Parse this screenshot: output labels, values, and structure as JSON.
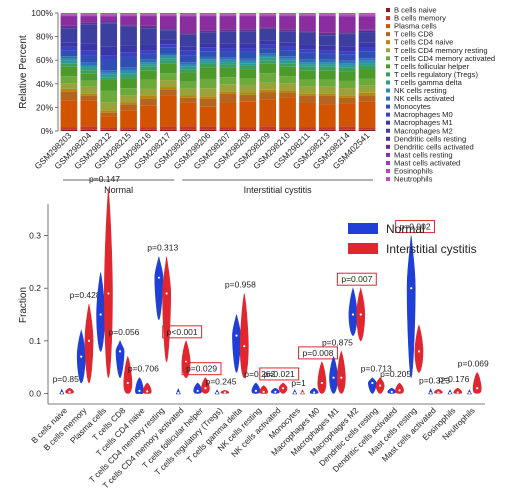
{
  "chart_data": [
    {
      "type": "bar",
      "stacked": true,
      "ylabel": "Relative Percent",
      "ylim": [
        0,
        100
      ],
      "yticks": [
        "0%",
        "20%",
        "40%",
        "60%",
        "80%",
        "100%"
      ],
      "samples": [
        "GSM298203",
        "GSM298204",
        "GSM298212",
        "GSM298215",
        "GSM298216",
        "GSM298217",
        "GSM298205",
        "GSM298206",
        "GSM298207",
        "GSM298208",
        "GSM298209",
        "GSM298210",
        "GSM298211",
        "GSM298213",
        "GSM298214",
        "GSM402541"
      ],
      "groups": [
        {
          "label": "Normal",
          "from": 0,
          "to": 5
        },
        {
          "label": "Interstitial cystitis",
          "from": 6,
          "to": 15
        }
      ],
      "series": [
        {
          "name": "B cells naive",
          "color": "#8b1a1a",
          "values": [
            1,
            1,
            1,
            1,
            1,
            1,
            1,
            1,
            1,
            1,
            1,
            1,
            1,
            1,
            1,
            1
          ]
        },
        {
          "name": "B cells memory",
          "color": "#c0392b",
          "values": [
            2,
            3,
            2,
            2,
            2,
            3,
            3,
            3,
            2,
            2,
            3,
            2,
            2,
            2,
            3,
            2
          ]
        },
        {
          "name": "Plasma cells",
          "color": "#d35400",
          "values": [
            23,
            22,
            10,
            15,
            19,
            27,
            21,
            17,
            21,
            22,
            23,
            26,
            21,
            20,
            19,
            22
          ]
        },
        {
          "name": "T cells CD8",
          "color": "#b5651d",
          "values": [
            8,
            4,
            3,
            5,
            6,
            5,
            4,
            7,
            8,
            6,
            6,
            4,
            6,
            7,
            5,
            5
          ]
        },
        {
          "name": "T cells CD4 naive",
          "color": "#b8860b",
          "values": [
            2,
            2,
            2,
            2,
            2,
            2,
            2,
            2,
            2,
            2,
            2,
            2,
            2,
            2,
            2,
            2
          ]
        },
        {
          "name": "T cells CD4 memory resting",
          "color": "#9aa33a",
          "values": [
            5,
            6,
            7,
            6,
            6,
            6,
            6,
            7,
            6,
            6,
            6,
            6,
            6,
            6,
            6,
            6
          ]
        },
        {
          "name": "T cells CD4 memory activated",
          "color": "#6aab3c",
          "values": [
            6,
            5,
            10,
            6,
            8,
            6,
            6,
            8,
            6,
            6,
            8,
            6,
            6,
            6,
            6,
            6
          ]
        },
        {
          "name": "T cells follicular helper",
          "color": "#4c9a2a",
          "values": [
            8,
            6,
            10,
            8,
            8,
            8,
            8,
            10,
            8,
            8,
            8,
            8,
            8,
            8,
            8,
            8
          ]
        },
        {
          "name": "T cells regulatory (Tregs)",
          "color": "#3a9e5c",
          "values": [
            3,
            3,
            2,
            3,
            3,
            3,
            3,
            3,
            3,
            3,
            3,
            3,
            3,
            3,
            3,
            3
          ]
        },
        {
          "name": "T cells gamma delta",
          "color": "#2e9c8a",
          "values": [
            2,
            2,
            2,
            2,
            2,
            2,
            2,
            2,
            2,
            2,
            2,
            2,
            2,
            2,
            2,
            2
          ]
        },
        {
          "name": "NK cells resting",
          "color": "#2a8fb0",
          "values": [
            2,
            2,
            2,
            2,
            2,
            2,
            2,
            2,
            2,
            2,
            2,
            2,
            2,
            2,
            2,
            2
          ]
        },
        {
          "name": "NK cells activated",
          "color": "#2f6db5",
          "values": [
            2,
            3,
            2,
            3,
            2,
            2,
            2,
            2,
            2,
            2,
            2,
            2,
            2,
            2,
            2,
            2
          ]
        },
        {
          "name": "Monocytes",
          "color": "#2f4fb5",
          "values": [
            5,
            6,
            9,
            9,
            5,
            5,
            6,
            5,
            5,
            6,
            4,
            5,
            6,
            5,
            5,
            6
          ]
        },
        {
          "name": "Macrophages M0",
          "color": "#3a3fc4",
          "values": [
            3,
            4,
            4,
            4,
            3,
            3,
            4,
            3,
            3,
            3,
            3,
            3,
            3,
            3,
            3,
            3
          ]
        },
        {
          "name": "Macrophages M1",
          "color": "#3b36a8",
          "values": [
            4,
            6,
            8,
            6,
            5,
            4,
            4,
            4,
            4,
            4,
            4,
            4,
            4,
            4,
            4,
            4
          ]
        },
        {
          "name": "Macrophages M2",
          "color": "#3d3fa0",
          "values": [
            12,
            16,
            20,
            16,
            14,
            8,
            10,
            9,
            10,
            10,
            9,
            9,
            10,
            9,
            10,
            9
          ]
        },
        {
          "name": "Dendritic cells resting",
          "color": "#4b3590",
          "values": [
            1,
            1,
            1,
            1,
            1,
            1,
            1,
            1,
            1,
            1,
            1,
            1,
            1,
            1,
            1,
            1
          ]
        },
        {
          "name": "Dendritic cells activated",
          "color": "#6b2f8f",
          "values": [
            1,
            1,
            1,
            1,
            1,
            1,
            1,
            1,
            1,
            1,
            1,
            1,
            1,
            1,
            1,
            1
          ]
        },
        {
          "name": "Mast cells resting",
          "color": "#8a2d9e",
          "values": [
            8,
            5,
            4,
            7,
            8,
            10,
            14,
            12,
            11,
            11,
            9,
            11,
            12,
            14,
            13,
            11
          ]
        },
        {
          "name": "Mast cells activated",
          "color": "#a23ab5",
          "values": [
            1,
            1,
            1,
            1,
            1,
            1,
            1,
            1,
            1,
            1,
            1,
            1,
            1,
            1,
            1,
            1
          ]
        },
        {
          "name": "Eosinophils",
          "color": "#b247b8",
          "values": [
            1,
            1,
            1,
            1,
            1,
            1,
            1,
            1,
            1,
            1,
            1,
            1,
            1,
            1,
            1,
            1
          ]
        },
        {
          "name": "Neutrophils",
          "color": "#c04dbd",
          "values": [
            1,
            1,
            1,
            1,
            1,
            1,
            1,
            1,
            1,
            1,
            1,
            1,
            1,
            1,
            1,
            1
          ]
        }
      ]
    },
    {
      "type": "violin",
      "ylabel": "Fraction",
      "ylim": [
        -0.02,
        0.36
      ],
      "yticks": [
        0.0,
        0.1,
        0.2,
        0.3
      ],
      "legend": [
        {
          "name": "Normal",
          "color": "#1f3fd6"
        },
        {
          "name": "Interstitial cystitis",
          "color": "#e0262f"
        }
      ],
      "categories": [
        {
          "name": "B cells naive",
          "p": "p=0.85",
          "boxed": false,
          "normal": {
            "min": 0,
            "max": 0.004,
            "median": 0.001
          },
          "ic": {
            "min": 0,
            "max": 0.01,
            "median": 0.003
          }
        },
        {
          "name": "B cells memory",
          "p": "p=0.428",
          "boxed": false,
          "normal": {
            "min": 0.02,
            "max": 0.12,
            "median": 0.07
          },
          "ic": {
            "min": 0.02,
            "max": 0.17,
            "median": 0.1
          }
        },
        {
          "name": "Plasma cells",
          "p": "p=0.147",
          "boxed": false,
          "normal": {
            "min": 0.08,
            "max": 0.23,
            "median": 0.15
          },
          "ic": {
            "min": 0.03,
            "max": 0.39,
            "median": 0.19
          }
        },
        {
          "name": "T cells CD8",
          "p": "p=0.056",
          "boxed": false,
          "normal": {
            "min": 0.03,
            "max": 0.1,
            "median": 0.08
          },
          "ic": {
            "min": 0,
            "max": 0.07,
            "median": 0.02
          }
        },
        {
          "name": "T cells CD4 naive",
          "p": "p=0.706",
          "boxed": false,
          "normal": {
            "min": 0,
            "max": 0.03,
            "median": 0.005
          },
          "ic": {
            "min": 0,
            "max": 0.02,
            "median": 0.004
          }
        },
        {
          "name": "T cells CD4 memory resting",
          "p": "p=0.313",
          "boxed": false,
          "normal": {
            "min": 0.14,
            "max": 0.26,
            "median": 0.22
          },
          "ic": {
            "min": 0.06,
            "max": 0.26,
            "median": 0.19
          }
        },
        {
          "name": "T cells CD4 memory activated",
          "p": "p<0.001",
          "boxed": true,
          "normal": {
            "min": 0,
            "max": 0.005,
            "median": 0.001
          },
          "ic": {
            "min": 0.03,
            "max": 0.1,
            "median": 0.06
          }
        },
        {
          "name": "T cells follicular helper",
          "p": "p=0.029",
          "boxed": true,
          "normal": {
            "min": 0,
            "max": 0.02,
            "median": 0.005
          },
          "ic": {
            "min": 0,
            "max": 0.03,
            "median": 0.01
          }
        },
        {
          "name": "T cells regulatory (Tregs)",
          "p": "p=0.245",
          "boxed": false,
          "normal": {
            "min": 0,
            "max": 0.003,
            "median": 0.001
          },
          "ic": {
            "min": 0,
            "max": 0.006,
            "median": 0.002
          }
        },
        {
          "name": "T cells gamma delta",
          "p": "p=0.958",
          "boxed": false,
          "normal": {
            "min": 0.04,
            "max": 0.15,
            "median": 0.11
          },
          "ic": {
            "min": 0.03,
            "max": 0.19,
            "median": 0.09
          }
        },
        {
          "name": "NK cells resting",
          "p": "p=0.262",
          "boxed": false,
          "normal": {
            "min": 0,
            "max": 0.02,
            "median": 0.005
          },
          "ic": {
            "min": 0,
            "max": 0.015,
            "median": 0.003
          }
        },
        {
          "name": "NK cells activated",
          "p": "p=0.021",
          "boxed": true,
          "normal": {
            "min": 0,
            "max": 0.01,
            "median": 0.003
          },
          "ic": {
            "min": 0,
            "max": 0.02,
            "median": 0.01
          }
        },
        {
          "name": "Monocytes",
          "p": "p=1",
          "boxed": false,
          "normal": {
            "min": 0,
            "max": 0.003,
            "median": 0.001
          },
          "ic": {
            "min": 0,
            "max": 0.003,
            "median": 0.001
          }
        },
        {
          "name": "Macrophages M0",
          "p": "p=0.008",
          "boxed": true,
          "normal": {
            "min": 0,
            "max": 0.01,
            "median": 0.002
          },
          "ic": {
            "min": 0,
            "max": 0.06,
            "median": 0.02
          }
        },
        {
          "name": "Macrophages M1",
          "p": "p=0.875",
          "boxed": false,
          "normal": {
            "min": 0,
            "max": 0.07,
            "median": 0.03
          },
          "ic": {
            "min": 0,
            "max": 0.08,
            "median": 0.03
          }
        },
        {
          "name": "Macrophages M2",
          "p": "p=0.007",
          "boxed": true,
          "normal": {
            "min": 0.11,
            "max": 0.2,
            "median": 0.15
          },
          "ic": {
            "min": 0.1,
            "max": 0.2,
            "median": 0.15
          }
        },
        {
          "name": "Dendritic cells resting",
          "p": "p=0.713",
          "boxed": false,
          "normal": {
            "min": 0,
            "max": 0.03,
            "median": 0.02
          },
          "ic": {
            "min": 0,
            "max": 0.03,
            "median": 0.015
          }
        },
        {
          "name": "Dendritic cells activated",
          "p": "p=0.205",
          "boxed": false,
          "normal": {
            "min": 0,
            "max": 0.01,
            "median": 0.003
          },
          "ic": {
            "min": 0,
            "max": 0.02,
            "median": 0.006
          }
        },
        {
          "name": "Mast cells resting",
          "p": "p=0.002",
          "boxed": true,
          "normal": {
            "min": 0.03,
            "max": 0.3,
            "median": 0.2
          },
          "ic": {
            "min": 0.04,
            "max": 0.13,
            "median": 0.08
          }
        },
        {
          "name": "Mast cells activated",
          "p": "p=0.323",
          "boxed": false,
          "normal": {
            "min": 0,
            "max": 0.005,
            "median": 0.001
          },
          "ic": {
            "min": 0,
            "max": 0.008,
            "median": 0.002
          }
        },
        {
          "name": "Eosinophils",
          "p": "p=0.176",
          "boxed": false,
          "normal": {
            "min": 0,
            "max": 0.003,
            "median": 0.001
          },
          "ic": {
            "min": 0,
            "max": 0.01,
            "median": 0.002
          }
        },
        {
          "name": "Neutrophils",
          "p": "p=0.069",
          "boxed": false,
          "normal": {
            "min": 0,
            "max": 0.003,
            "median": 0.001
          },
          "ic": {
            "min": 0,
            "max": 0.04,
            "median": 0.01
          }
        }
      ]
    }
  ]
}
